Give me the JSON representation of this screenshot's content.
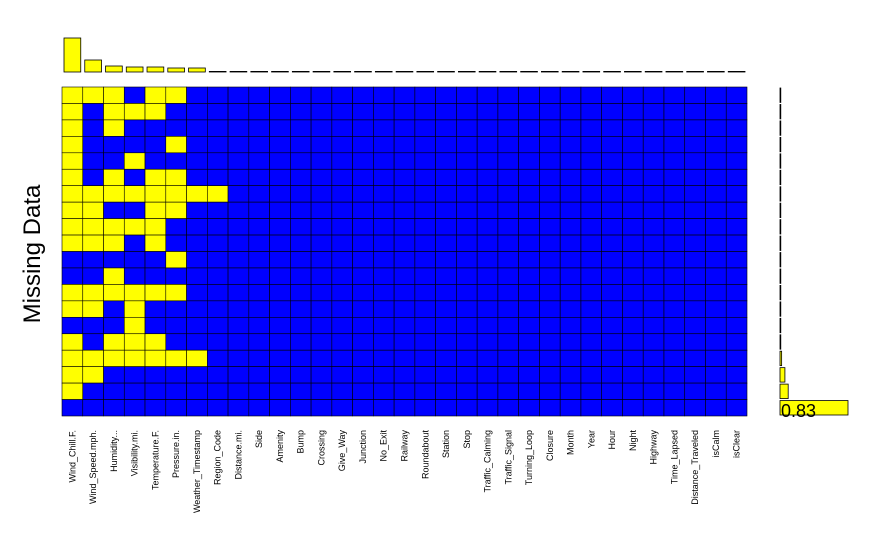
{
  "chart_data": {
    "type": "heatmap",
    "ylabel": "Missing Data",
    "colors": {
      "missing": "#FFFF00",
      "present": "#0000FF",
      "border": "#000000"
    },
    "variables": [
      "Wind_Chill.F.",
      "Wind_Speed.mph.",
      "Humidity...",
      "Visibility.mi.",
      "Temperature.F.",
      "Pressure.in.",
      "Weather_Timestamp",
      "Region_Code",
      "Distance.mi.",
      "Side",
      "Amenity",
      "Bump",
      "Crossing",
      "Give_Way",
      "Junction",
      "No_Exit",
      "Railway",
      "Roundabout",
      "Station",
      "Stop",
      "Traffic_Calming",
      "Traffic_Signal",
      "Turning_Loop",
      "Closure",
      "Month",
      "Year",
      "Hour",
      "Night",
      "Highway",
      "Time_Lapsed",
      "Distance_Traveled",
      "isCalm",
      "isClear"
    ],
    "missing_proportion": [
      0.17,
      0.06,
      0.03,
      0.025,
      0.025,
      0.02,
      0.02,
      0.002,
      0.002,
      0.002,
      0.002,
      0.002,
      0.002,
      0.002,
      0.002,
      0.002,
      0.002,
      0.002,
      0.002,
      0.002,
      0.002,
      0.002,
      0.002,
      0.002,
      0.002,
      0.002,
      0.002,
      0.002,
      0.002,
      0.002,
      0.002,
      0.002,
      0.002
    ],
    "patterns": [
      [
        1,
        1,
        1,
        0,
        1,
        1,
        0,
        0,
        0,
        0,
        0,
        0,
        0,
        0,
        0,
        0,
        0,
        0,
        0,
        0,
        0,
        0,
        0,
        0,
        0,
        0,
        0,
        0,
        0,
        0,
        0,
        0,
        0
      ],
      [
        1,
        0,
        1,
        1,
        1,
        0,
        0,
        0,
        0,
        0,
        0,
        0,
        0,
        0,
        0,
        0,
        0,
        0,
        0,
        0,
        0,
        0,
        0,
        0,
        0,
        0,
        0,
        0,
        0,
        0,
        0,
        0,
        0
      ],
      [
        1,
        0,
        1,
        0,
        0,
        0,
        0,
        0,
        0,
        0,
        0,
        0,
        0,
        0,
        0,
        0,
        0,
        0,
        0,
        0,
        0,
        0,
        0,
        0,
        0,
        0,
        0,
        0,
        0,
        0,
        0,
        0,
        0
      ],
      [
        1,
        0,
        0,
        0,
        0,
        1,
        0,
        0,
        0,
        0,
        0,
        0,
        0,
        0,
        0,
        0,
        0,
        0,
        0,
        0,
        0,
        0,
        0,
        0,
        0,
        0,
        0,
        0,
        0,
        0,
        0,
        0,
        0
      ],
      [
        1,
        0,
        0,
        1,
        0,
        0,
        0,
        0,
        0,
        0,
        0,
        0,
        0,
        0,
        0,
        0,
        0,
        0,
        0,
        0,
        0,
        0,
        0,
        0,
        0,
        0,
        0,
        0,
        0,
        0,
        0,
        0,
        0
      ],
      [
        1,
        0,
        1,
        0,
        1,
        1,
        0,
        0,
        0,
        0,
        0,
        0,
        0,
        0,
        0,
        0,
        0,
        0,
        0,
        0,
        0,
        0,
        0,
        0,
        0,
        0,
        0,
        0,
        0,
        0,
        0,
        0,
        0
      ],
      [
        1,
        1,
        1,
        1,
        1,
        1,
        1,
        1,
        0,
        0,
        0,
        0,
        0,
        0,
        0,
        0,
        0,
        0,
        0,
        0,
        0,
        0,
        0,
        0,
        0,
        0,
        0,
        0,
        0,
        0,
        0,
        0,
        0
      ],
      [
        1,
        1,
        0,
        0,
        1,
        1,
        0,
        0,
        0,
        0,
        0,
        0,
        0,
        0,
        0,
        0,
        0,
        0,
        0,
        0,
        0,
        0,
        0,
        0,
        0,
        0,
        0,
        0,
        0,
        0,
        0,
        0,
        0
      ],
      [
        1,
        1,
        1,
        1,
        1,
        0,
        0,
        0,
        0,
        0,
        0,
        0,
        0,
        0,
        0,
        0,
        0,
        0,
        0,
        0,
        0,
        0,
        0,
        0,
        0,
        0,
        0,
        0,
        0,
        0,
        0,
        0,
        0
      ],
      [
        1,
        1,
        1,
        0,
        1,
        0,
        0,
        0,
        0,
        0,
        0,
        0,
        0,
        0,
        0,
        0,
        0,
        0,
        0,
        0,
        0,
        0,
        0,
        0,
        0,
        0,
        0,
        0,
        0,
        0,
        0,
        0,
        0
      ],
      [
        0,
        0,
        0,
        0,
        0,
        1,
        0,
        0,
        0,
        0,
        0,
        0,
        0,
        0,
        0,
        0,
        0,
        0,
        0,
        0,
        0,
        0,
        0,
        0,
        0,
        0,
        0,
        0,
        0,
        0,
        0,
        0,
        0
      ],
      [
        0,
        0,
        1,
        0,
        0,
        0,
        0,
        0,
        0,
        0,
        0,
        0,
        0,
        0,
        0,
        0,
        0,
        0,
        0,
        0,
        0,
        0,
        0,
        0,
        0,
        0,
        0,
        0,
        0,
        0,
        0,
        0,
        0
      ],
      [
        1,
        1,
        1,
        1,
        1,
        1,
        0,
        0,
        0,
        0,
        0,
        0,
        0,
        0,
        0,
        0,
        0,
        0,
        0,
        0,
        0,
        0,
        0,
        0,
        0,
        0,
        0,
        0,
        0,
        0,
        0,
        0,
        0
      ],
      [
        1,
        1,
        0,
        1,
        0,
        0,
        0,
        0,
        0,
        0,
        0,
        0,
        0,
        0,
        0,
        0,
        0,
        0,
        0,
        0,
        0,
        0,
        0,
        0,
        0,
        0,
        0,
        0,
        0,
        0,
        0,
        0,
        0
      ],
      [
        0,
        0,
        0,
        1,
        0,
        0,
        0,
        0,
        0,
        0,
        0,
        0,
        0,
        0,
        0,
        0,
        0,
        0,
        0,
        0,
        0,
        0,
        0,
        0,
        0,
        0,
        0,
        0,
        0,
        0,
        0,
        0,
        0
      ],
      [
        1,
        0,
        1,
        1,
        1,
        0,
        0,
        0,
        0,
        0,
        0,
        0,
        0,
        0,
        0,
        0,
        0,
        0,
        0,
        0,
        0,
        0,
        0,
        0,
        0,
        0,
        0,
        0,
        0,
        0,
        0,
        0,
        0
      ],
      [
        1,
        1,
        1,
        1,
        1,
        1,
        1,
        0,
        0,
        0,
        0,
        0,
        0,
        0,
        0,
        0,
        0,
        0,
        0,
        0,
        0,
        0,
        0,
        0,
        0,
        0,
        0,
        0,
        0,
        0,
        0,
        0,
        0
      ],
      [
        1,
        1,
        0,
        0,
        0,
        0,
        0,
        0,
        0,
        0,
        0,
        0,
        0,
        0,
        0,
        0,
        0,
        0,
        0,
        0,
        0,
        0,
        0,
        0,
        0,
        0,
        0,
        0,
        0,
        0,
        0,
        0,
        0
      ],
      [
        1,
        0,
        0,
        0,
        0,
        0,
        0,
        0,
        0,
        0,
        0,
        0,
        0,
        0,
        0,
        0,
        0,
        0,
        0,
        0,
        0,
        0,
        0,
        0,
        0,
        0,
        0,
        0,
        0,
        0,
        0,
        0,
        0
      ],
      [
        0,
        0,
        0,
        0,
        0,
        0,
        0,
        0,
        0,
        0,
        0,
        0,
        0,
        0,
        0,
        0,
        0,
        0,
        0,
        0,
        0,
        0,
        0,
        0,
        0,
        0,
        0,
        0,
        0,
        0,
        0,
        0,
        0
      ]
    ],
    "pattern_proportion": [
      0.001,
      0.001,
      0.001,
      0.001,
      0.001,
      0.001,
      0.001,
      0.002,
      0.002,
      0.003,
      0.003,
      0.004,
      0.003,
      0.003,
      0.004,
      0.004,
      0.02,
      0.06,
      0.1,
      0.83
    ],
    "pattern_label": "0.83"
  }
}
